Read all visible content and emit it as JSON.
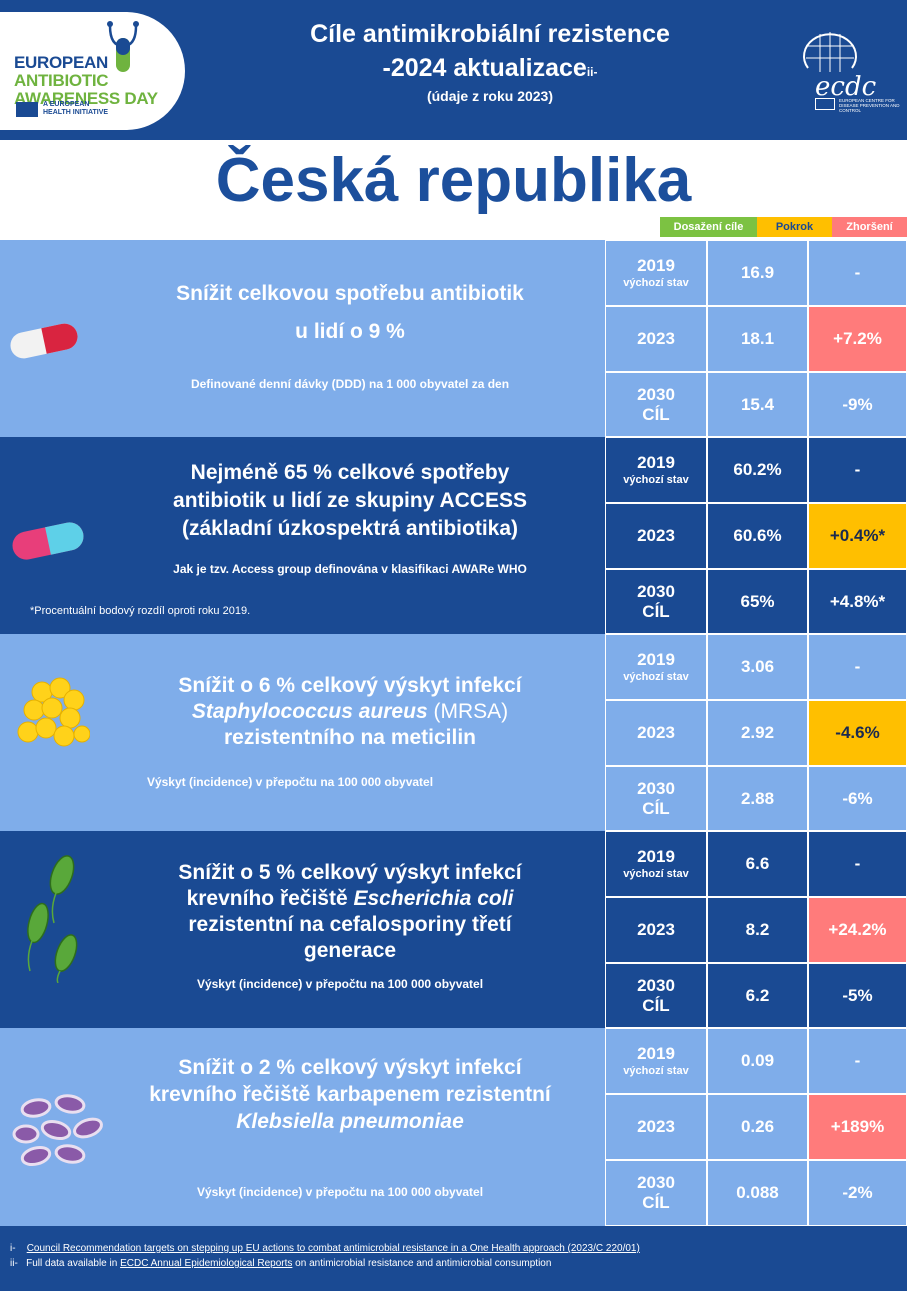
{
  "header": {
    "logo_line1": "EUROPEAN",
    "logo_line2": "ANTIBIOTIC",
    "logo_line3": "AWARENESS DAY",
    "logo_tagline1": "A EUROPEAN",
    "logo_tagline2": "HEALTH INITIATIVE",
    "title_line1": "Cíle antimikrobiální rezistence",
    "title_line2": "-2024 aktualizace",
    "title_line2_sup": "ii-",
    "title_line3": "(údaje z roku 2023)",
    "ecdc_logo": "ecdc",
    "ecdc_small": "EUROPEAN CENTRE FOR DISEASE PREVENTION AND CONTROL"
  },
  "country": "Česká republika",
  "legend": {
    "achieved": "Dosažení cíle",
    "progress": "Pokrok",
    "worse": "Zhoršení",
    "colors": {
      "achieved": "#7cc242",
      "progress": "#ffbf00",
      "worse": "#ff7b7b"
    }
  },
  "labels": {
    "baseline": "výchozí stav",
    "target": "CÍL"
  },
  "rows": [
    {
      "icon": "pill-red-icon",
      "goal_lines": [
        "Snížit celkovou spotřebu antibiotik",
        "u lidí o 9 %"
      ],
      "subtitle": "Definované denní dávky (DDD) na 1 000 obyvatel za den",
      "years": [
        "2019",
        "2023",
        "2030"
      ],
      "values": [
        "16.9",
        "18.1",
        "15.4"
      ],
      "changes": [
        "-",
        "+7.2%",
        "-9%"
      ],
      "status": [
        "none",
        "worse",
        "none"
      ]
    },
    {
      "icon": "pill-pink-cyan-icon",
      "goal_lines": [
        "Nejméně 65 % celkové spotřeby",
        "antibiotik u lidí ze skupiny ACCESS",
        "(základní  úzkospektrá antibiotika)"
      ],
      "subtitle": "Jak je tzv. Access group definována v klasifikaci AWARe WHO",
      "note": "*Procentuální bodový rozdíl oproti roku 2019.",
      "years": [
        "2019",
        "2023",
        "2030"
      ],
      "values": [
        "60.2%",
        "60.6%",
        "65%"
      ],
      "changes": [
        "-",
        "+0.4%*",
        "+4.8%*"
      ],
      "status": [
        "none",
        "progress",
        "none"
      ]
    },
    {
      "icon": "staphylococcus-icon",
      "goal_lines": [
        "Snížit o 6 % celkový výskyt infekcí"
      ],
      "goal_italic": "Staphylococcus aureus",
      "goal_after_italic": " (MRSA)",
      "goal_last": "rezistentního na meticilin",
      "subtitle": "Výskyt (incidence) v přepočtu na 100 000 obyvatel",
      "years": [
        "2019",
        "2023",
        "2030"
      ],
      "values": [
        "3.06",
        "2.92",
        "2.88"
      ],
      "changes": [
        "-",
        "-4.6%",
        "-6%"
      ],
      "status": [
        "none",
        "progress",
        "none"
      ]
    },
    {
      "icon": "e-coli-icon",
      "goal_line1": "Snížit o 5 % celkový výskyt infekcí",
      "goal_line2_pre": "krevního řečiště ",
      "goal_italic": "Escherichia coli",
      "goal_line3": "rezistentní na cefalosporiny třetí",
      "goal_line4": "generace",
      "subtitle": "Výskyt (incidence) v přepočtu na 100 000 obyvatel",
      "years": [
        "2019",
        "2023",
        "2030"
      ],
      "values": [
        "6.6",
        "8.2",
        "6.2"
      ],
      "changes": [
        "-",
        "+24.2%",
        "-5%"
      ],
      "status": [
        "none",
        "worse",
        "none"
      ]
    },
    {
      "icon": "klebsiella-icon",
      "goal_line1": "Snížit o 2 % celkový výskyt infekcí",
      "goal_line2": "krevního řečiště karbapenem rezistentní",
      "goal_italic": "Klebsiella pneumoniae",
      "subtitle": "Výskyt (incidence) v přepočtu na 100 000 obyvatel",
      "years": [
        "2019",
        "2023",
        "2030"
      ],
      "values": [
        "0.09",
        "0.26",
        "0.088"
      ],
      "changes": [
        "-",
        "+189%",
        "-2%"
      ],
      "status": [
        "none",
        "worse",
        "none"
      ]
    }
  ],
  "footer": {
    "line1_mark": "i-",
    "line1_link": "Council Recommendation targets on stepping up EU actions to combat antimicrobial resistance in a One Health approach (2023/C 220/01)",
    "line2_mark": "ii-",
    "line2_pre": "Full data available in ",
    "line2_link": "ECDC Annual Epidemiological Reports",
    "line2_post": " on antimicrobial resistance and antimicrobial consumption"
  }
}
